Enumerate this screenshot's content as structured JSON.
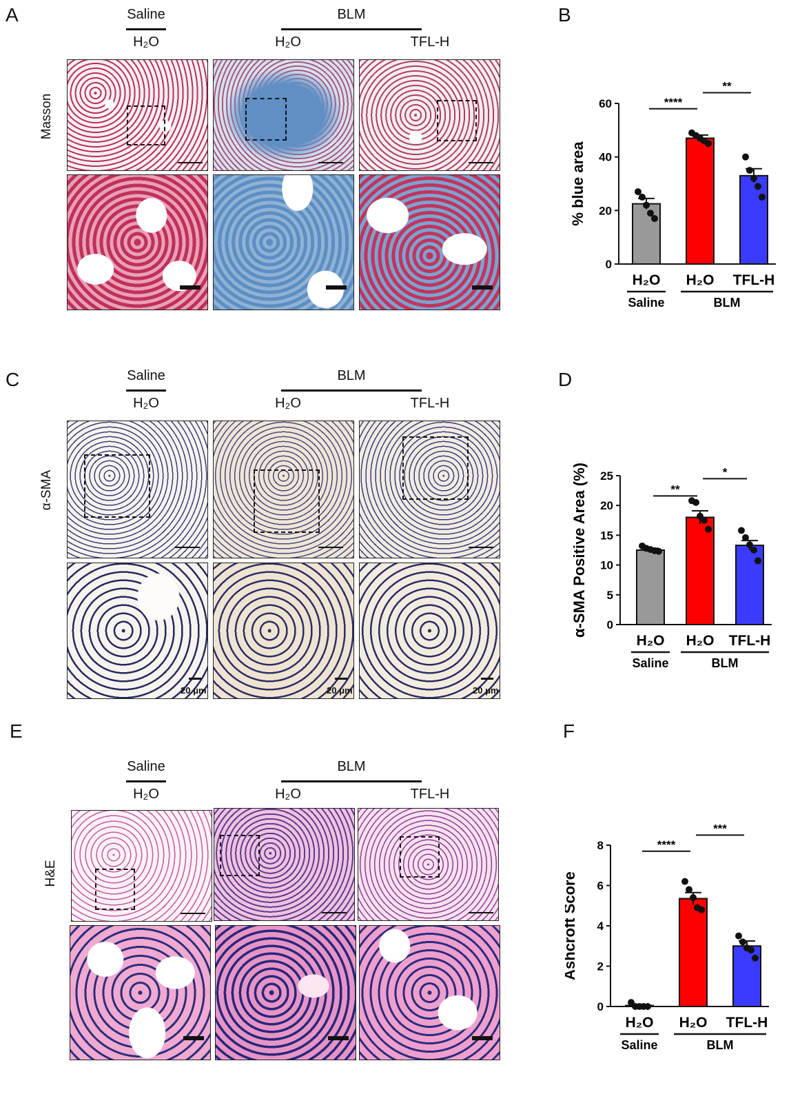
{
  "figure": {
    "panel_labels": [
      "A",
      "B",
      "C",
      "D",
      "E",
      "F"
    ],
    "group_saline": "Saline",
    "group_blm": "BLM",
    "treatment_h2o": "H₂O",
    "treatment_tfl": "TFL-H",
    "rows": {
      "masson": "Masson",
      "sma": "α-SMA",
      "he": "H&E"
    },
    "scale_20": "20 μm",
    "colors": {
      "saline": "#999999",
      "blm_h2o": "#ff0000",
      "blm_tfl": "#3b3bff",
      "masson_bg": "#c23b5e",
      "masson_blue": "#6f98c4",
      "sma_bg": "#f3efe8",
      "he_bg": "#e9a6cf"
    }
  },
  "chart_data": [
    {
      "panel": "B",
      "type": "bar",
      "ylabel": "% blue area",
      "ylim": [
        0,
        60
      ],
      "yticks": [
        0,
        20,
        40,
        60
      ],
      "categories": [
        "H₂O",
        "H₂O",
        "TFL-H"
      ],
      "groups": [
        {
          "name": "Saline",
          "members": [
            0
          ]
        },
        {
          "name": "BLM",
          "members": [
            1,
            2
          ]
        }
      ],
      "values": [
        22.5,
        47,
        33
      ],
      "errors": [
        2,
        1.2,
        2.6
      ],
      "points": [
        [
          27,
          25,
          22,
          19,
          17
        ],
        [
          49,
          48,
          47,
          46,
          45
        ],
        [
          40,
          35,
          32,
          29,
          25
        ]
      ],
      "significance": [
        {
          "from": 0,
          "to": 1,
          "label": "****",
          "y": 58
        },
        {
          "from": 1,
          "to": 2,
          "label": "**",
          "y": 64
        }
      ]
    },
    {
      "panel": "D",
      "type": "bar",
      "ylabel": "α-SMA Positive Area (%)",
      "ylim": [
        0,
        25
      ],
      "yticks": [
        0,
        5,
        10,
        15,
        20,
        25
      ],
      "categories": [
        "H₂O",
        "H₂O",
        "TFL-H"
      ],
      "groups": [
        {
          "name": "Saline",
          "members": [
            0
          ]
        },
        {
          "name": "BLM",
          "members": [
            1,
            2
          ]
        }
      ],
      "values": [
        12.5,
        18,
        13.3
      ],
      "errors": [
        0.3,
        1.1,
        0.8
      ],
      "points": [
        [
          13.2,
          12.8,
          12.6,
          12.4,
          12.3
        ],
        [
          20.8,
          20.5,
          18.2,
          17.5,
          16.0
        ],
        [
          15.8,
          14.6,
          13.4,
          12.5,
          10.7
        ]
      ],
      "significance": [
        {
          "from": 0,
          "to": 1,
          "label": "**",
          "y": 21.6
        },
        {
          "from": 1,
          "to": 2,
          "label": "*",
          "y": 24.5
        }
      ]
    },
    {
      "panel": "F",
      "type": "bar",
      "ylabel": "Ashcroft Score",
      "ylim": [
        0,
        8
      ],
      "yticks": [
        0,
        2,
        4,
        6,
        8
      ],
      "categories": [
        "H₂O",
        "H₂O",
        "TFL-H"
      ],
      "groups": [
        {
          "name": "Saline",
          "members": [
            0
          ]
        },
        {
          "name": "BLM",
          "members": [
            1,
            2
          ]
        }
      ],
      "values": [
        0.05,
        5.35,
        3.0
      ],
      "errors": [
        0.05,
        0.3,
        0.25
      ],
      "points": [
        [
          0.2,
          0,
          0,
          0,
          0
        ],
        [
          6.2,
          5.8,
          5.4,
          4.9,
          4.8
        ],
        [
          3.5,
          3.2,
          2.9,
          2.8,
          2.4
        ]
      ],
      "significance": [
        {
          "from": 0,
          "to": 1,
          "label": "****",
          "y": 7.7
        },
        {
          "from": 1,
          "to": 2,
          "label": "***",
          "y": 8.5
        }
      ]
    }
  ]
}
